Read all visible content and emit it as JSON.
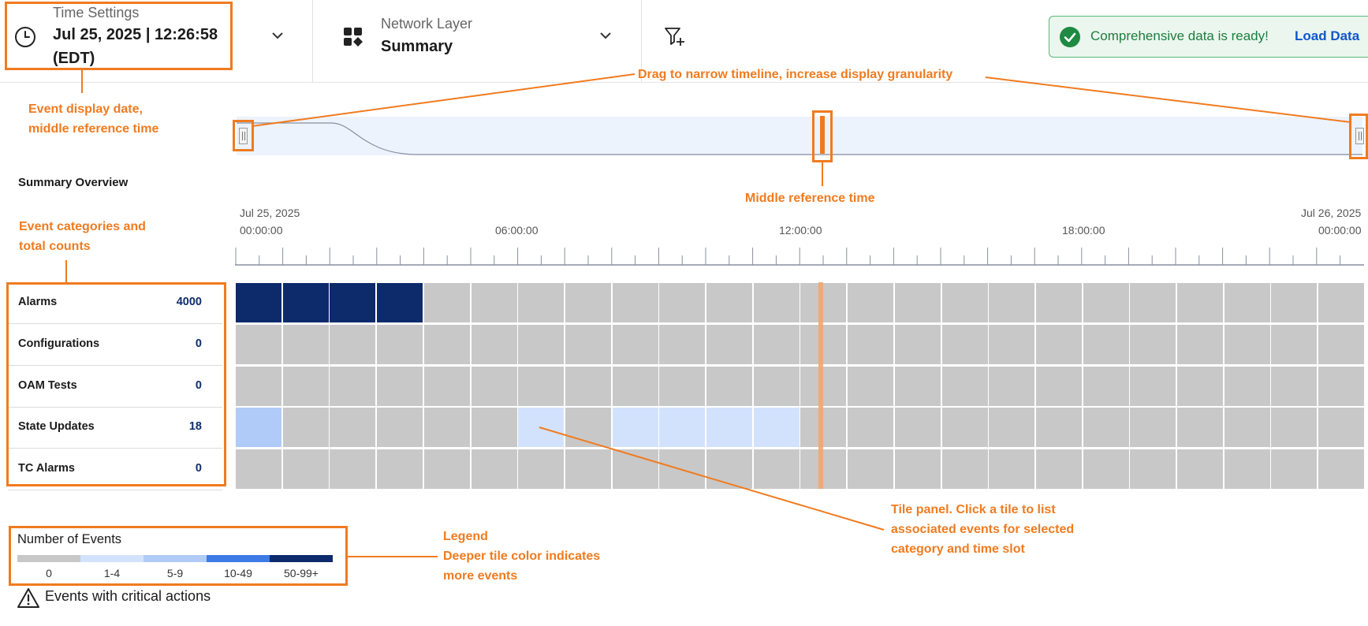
{
  "header": {
    "time_settings": {
      "label": "Time Settings",
      "value_line1": "Jul 25, 2025 | 12:26:58",
      "value_line2": "(EDT)"
    },
    "network_layer": {
      "label": "Network Layer",
      "value": "Summary"
    },
    "toast": {
      "message": "Comprehensive data is ready!",
      "action": "Load Data"
    }
  },
  "section_title": "Summary Overview",
  "timeline": {
    "start_date": "Jul 25, 2025",
    "start_time": "00:00:00",
    "marks": [
      "06:00:00",
      "12:00:00",
      "18:00:00"
    ],
    "end_date": "Jul 26, 2025",
    "end_time": "00:00:00"
  },
  "categories": [
    {
      "name": "Alarms",
      "count": "4000",
      "levels": [
        4,
        4,
        4,
        4,
        0,
        0,
        0,
        0,
        0,
        0,
        0,
        0,
        0,
        0,
        0,
        0,
        0,
        0,
        0,
        0,
        0,
        0,
        0,
        0
      ]
    },
    {
      "name": "Configurations",
      "count": "0",
      "levels": [
        0,
        0,
        0,
        0,
        0,
        0,
        0,
        0,
        0,
        0,
        0,
        0,
        0,
        0,
        0,
        0,
        0,
        0,
        0,
        0,
        0,
        0,
        0,
        0
      ]
    },
    {
      "name": "OAM Tests",
      "count": "0",
      "levels": [
        0,
        0,
        0,
        0,
        0,
        0,
        0,
        0,
        0,
        0,
        0,
        0,
        0,
        0,
        0,
        0,
        0,
        0,
        0,
        0,
        0,
        0,
        0,
        0
      ]
    },
    {
      "name": "State Updates",
      "count": "18",
      "levels": [
        2,
        0,
        0,
        0,
        0,
        0,
        1,
        0,
        1,
        1,
        1,
        1,
        0,
        0,
        0,
        0,
        0,
        0,
        0,
        0,
        0,
        0,
        0,
        0
      ]
    },
    {
      "name": "TC Alarms",
      "count": "0",
      "levels": [
        0,
        0,
        0,
        0,
        0,
        0,
        0,
        0,
        0,
        0,
        0,
        0,
        0,
        0,
        0,
        0,
        0,
        0,
        0,
        0,
        0,
        0,
        0,
        0
      ]
    }
  ],
  "legend": {
    "title": "Number of Events",
    "bins": [
      {
        "label": "0",
        "color": "#c8c8c8"
      },
      {
        "label": "1-4",
        "color": "#d3e2fc"
      },
      {
        "label": "5-9",
        "color": "#b0cbf7"
      },
      {
        "label": "10-49",
        "color": "#3d7ae6"
      },
      {
        "label": "50-99+",
        "color": "#0d2b6b"
      }
    ],
    "critical_label": "Events with critical actions"
  },
  "annotations": {
    "event_date": [
      "Event display date,",
      "middle reference time"
    ],
    "drag": "Drag to narrow timeline, increase display granularity",
    "middle_ref": "Middle reference time",
    "categories": [
      "Event categories and",
      "total counts"
    ],
    "tile_panel": [
      "Tile panel. Click a tile to list",
      "associated events for selected",
      "category and time slot"
    ],
    "legend": [
      "Legend",
      "Deeper tile color indicates",
      "more events"
    ]
  },
  "colors": {
    "annotation": "#f07b1f",
    "accent": "#1156c9",
    "success": "#1e7d3e"
  }
}
